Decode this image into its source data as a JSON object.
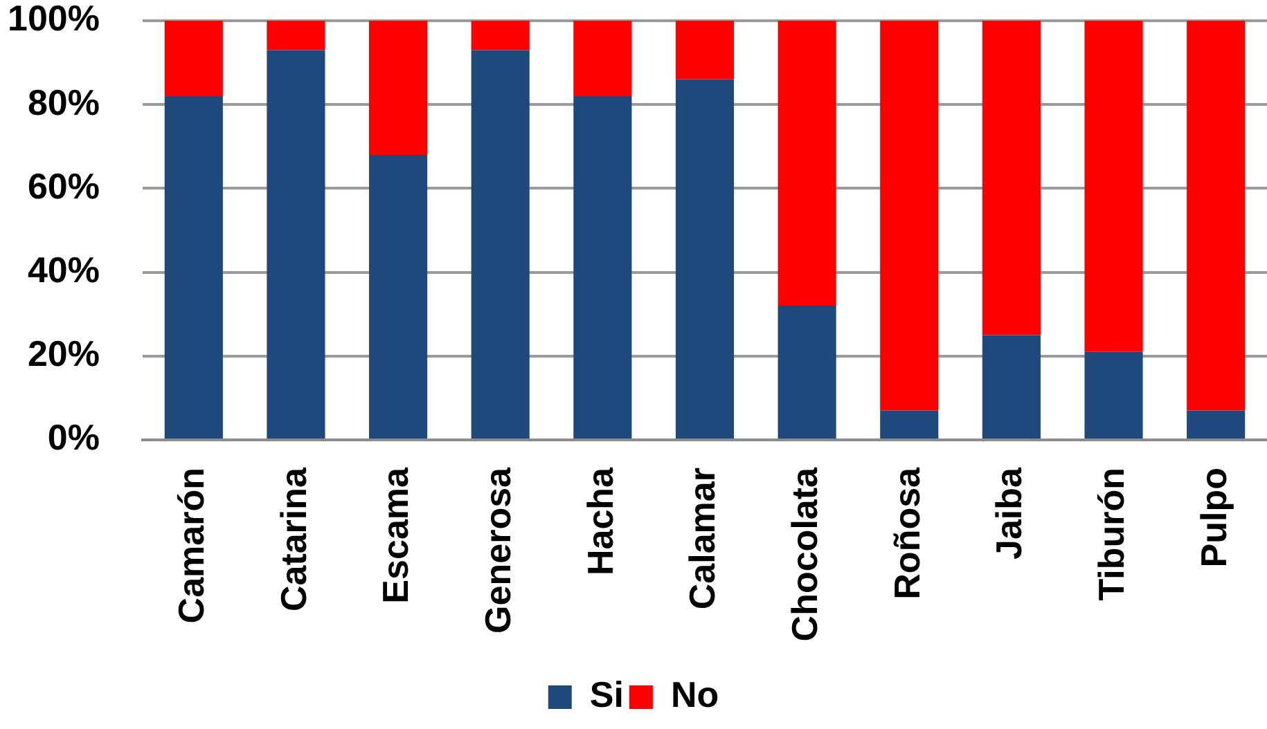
{
  "chart_data": {
    "type": "bar",
    "categories": [
      "Camarón",
      "Catarina",
      "Escama",
      "Generosa",
      "Hacha",
      "Calamar",
      "Chocolata",
      "Roñosa",
      "Jaiba",
      "Tiburón",
      "Pulpo"
    ],
    "series": [
      {
        "name": "Si",
        "color": "#1f497d",
        "values": [
          82,
          93,
          68,
          93,
          82,
          86,
          32,
          7,
          25,
          21,
          7
        ]
      },
      {
        "name": "No",
        "color": "#ff0000",
        "values": [
          18,
          7,
          32,
          7,
          18,
          14,
          68,
          93,
          75,
          79,
          93
        ]
      }
    ],
    "stacked": true,
    "ylim": [
      0,
      100
    ],
    "yticks": [
      {
        "value": 0,
        "label": "0%"
      },
      {
        "value": 20,
        "label": "20%"
      },
      {
        "value": 40,
        "label": "40%"
      },
      {
        "value": 60,
        "label": "60%"
      },
      {
        "value": 80,
        "label": "80%"
      },
      {
        "value": 100,
        "label": "100%"
      }
    ],
    "grid": "y",
    "legend": "bottom"
  }
}
